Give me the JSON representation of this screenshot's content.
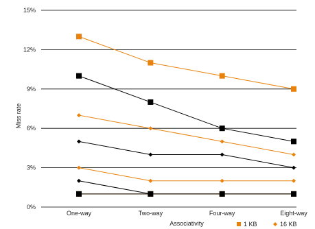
{
  "chart_data": {
    "type": "line",
    "title": "",
    "xlabel": "Associativity",
    "ylabel": "Miss rate",
    "categories": [
      "One-way",
      "Two-way",
      "Four-way",
      "Eight-way"
    ],
    "yticks": [
      "0%",
      "3%",
      "6%",
      "9%",
      "12%",
      "15%"
    ],
    "ylim": [
      0,
      15
    ],
    "grid": "horizontal",
    "legend_position": "bottom-right",
    "legend": [
      {
        "label": "1 KB",
        "marker": "square",
        "color": "#e8820c"
      },
      {
        "label": "16 KB",
        "marker": "diamond",
        "color": "#e8820c"
      }
    ],
    "series": [
      {
        "values": [
          13,
          11,
          10,
          9
        ],
        "color": "#e8820c",
        "marker": "square"
      },
      {
        "values": [
          10,
          8,
          6,
          5
        ],
        "color": "#000000",
        "marker": "square"
      },
      {
        "values": [
          7,
          6,
          5,
          4
        ],
        "color": "#e8820c",
        "marker": "diamond"
      },
      {
        "values": [
          5,
          4,
          4,
          3
        ],
        "color": "#000000",
        "marker": "diamond"
      },
      {
        "values": [
          3,
          2,
          2,
          2
        ],
        "color": "#e8820c",
        "marker": "diamond"
      },
      {
        "values": [
          2,
          1,
          1,
          1
        ],
        "color": "#000000",
        "marker": "diamond"
      },
      {
        "values": [
          1,
          1,
          1,
          1
        ],
        "color": "#e8820c",
        "marker": "square"
      },
      {
        "values": [
          1,
          1,
          1,
          1
        ],
        "color": "#000000",
        "marker": "square"
      }
    ]
  }
}
